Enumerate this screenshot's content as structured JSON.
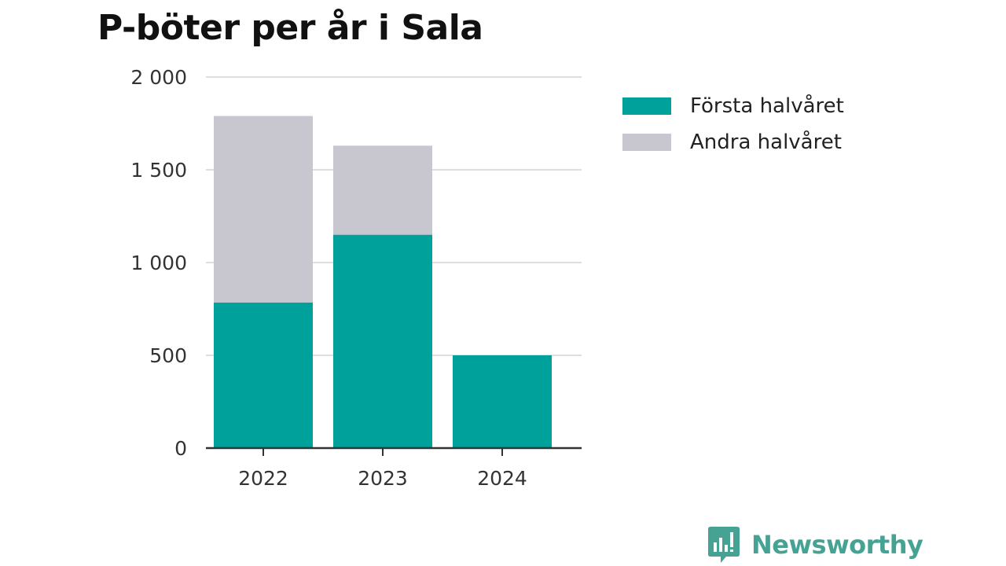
{
  "chart_data": {
    "type": "bar",
    "stacked": true,
    "title": "P-böter per år i Sala",
    "xlabel": "",
    "ylabel": "",
    "categories": [
      "2022",
      "2023",
      "2024"
    ],
    "series": [
      {
        "name": "Första halvåret",
        "color": "#00a19a",
        "values": [
          785,
          1150,
          500
        ]
      },
      {
        "name": "Andra halvåret",
        "color": "#c8c7d0",
        "values": [
          1005,
          480,
          0
        ]
      }
    ],
    "ylim": [
      0,
      2000
    ],
    "yticks": [
      0,
      500,
      1000,
      1500,
      2000
    ],
    "ytick_labels": [
      "0",
      "500",
      "1 000",
      "1 500",
      "2 000"
    ],
    "grid": true,
    "legend_position": "right"
  },
  "brand": {
    "name": "Newsworthy",
    "color": "#46a394"
  }
}
